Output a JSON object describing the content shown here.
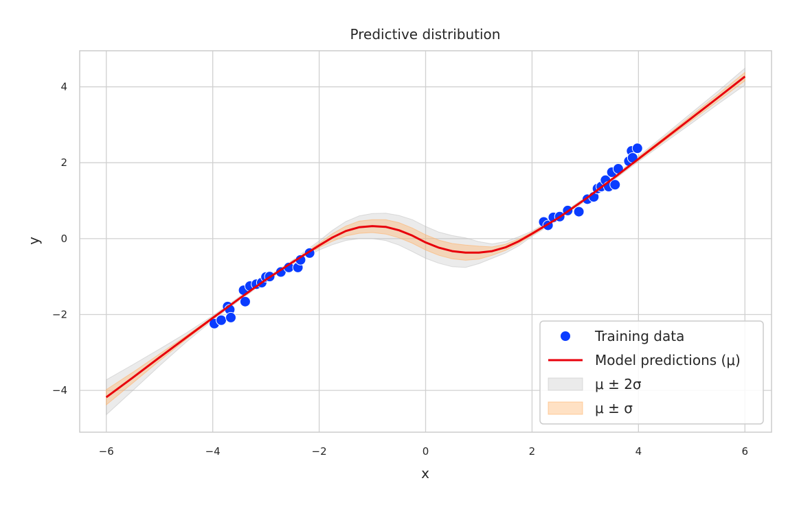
{
  "chart_data": {
    "type": "line",
    "title": "Predictive distribution",
    "xlabel": "x",
    "ylabel": "y",
    "xlim": [
      -6.5,
      6.5
    ],
    "ylim": [
      -5.1,
      4.95
    ],
    "xticks": [
      -6,
      -4,
      -2,
      0,
      2,
      4,
      6
    ],
    "yticks": [
      -4,
      -2,
      0,
      2,
      4
    ],
    "xtick_labels": [
      "−6",
      "−4",
      "−2",
      "0",
      "2",
      "4",
      "6"
    ],
    "ytick_labels": [
      "−4",
      "−2",
      "0",
      "2",
      "4"
    ],
    "grid": true,
    "legend_position": "lower-right",
    "legend": [
      {
        "label": "Training data",
        "kind": "marker"
      },
      {
        "label": "Model predictions (μ)",
        "kind": "line"
      },
      {
        "label": "μ ± 2σ",
        "kind": "patch-gray"
      },
      {
        "label": "μ ± σ",
        "kind": "patch-orange"
      }
    ],
    "colors": {
      "training": "#0a3cff",
      "prediction": "#e8000b",
      "band2": "#bebebe",
      "band1": "#ffb36b",
      "grid": "#d0d0d0",
      "frame": "#cccccc"
    },
    "series": [
      {
        "name": "Training data",
        "kind": "scatter",
        "x": [
          -3.97,
          -3.84,
          -3.72,
          -3.68,
          -3.66,
          -3.42,
          -3.39,
          -3.3,
          -3.18,
          -3.08,
          -3.0,
          -2.93,
          -2.72,
          -2.57,
          -2.4,
          -2.35,
          -2.18,
          2.22,
          2.3,
          2.4,
          2.52,
          2.67,
          2.88,
          3.04,
          3.16,
          3.23,
          3.3,
          3.38,
          3.44,
          3.5,
          3.56,
          3.62,
          3.82,
          3.87,
          3.89,
          3.98
        ],
        "y": [
          -2.24,
          -2.15,
          -1.79,
          -1.87,
          -2.08,
          -1.36,
          -1.66,
          -1.25,
          -1.2,
          -1.16,
          -1.01,
          -1.0,
          -0.88,
          -0.76,
          -0.76,
          -0.56,
          -0.38,
          0.44,
          0.35,
          0.56,
          0.58,
          0.74,
          0.71,
          1.04,
          1.1,
          1.32,
          1.37,
          1.54,
          1.37,
          1.75,
          1.42,
          1.84,
          2.04,
          2.31,
          2.13,
          2.38
        ]
      },
      {
        "name": "Model predictions (μ)",
        "kind": "line",
        "x": [
          -6.0,
          -5.5,
          -5.0,
          -4.5,
          -4.0,
          -3.5,
          -3.0,
          -2.5,
          -2.0,
          -1.75,
          -1.5,
          -1.25,
          -1.0,
          -0.75,
          -0.5,
          -0.25,
          0.0,
          0.25,
          0.5,
          0.75,
          1.0,
          1.25,
          1.5,
          1.75,
          2.0,
          2.5,
          3.0,
          3.5,
          4.0,
          4.5,
          5.0,
          5.5,
          6.0
        ],
        "y": [
          -4.18,
          -3.66,
          -3.13,
          -2.61,
          -2.09,
          -1.58,
          -1.08,
          -0.62,
          -0.18,
          0.03,
          0.2,
          0.3,
          0.33,
          0.31,
          0.22,
          0.08,
          -0.1,
          -0.24,
          -0.33,
          -0.37,
          -0.37,
          -0.33,
          -0.23,
          -0.07,
          0.13,
          0.55,
          1.04,
          1.56,
          2.1,
          2.64,
          3.18,
          3.72,
          4.27
        ]
      },
      {
        "name": "μ ± 2σ",
        "kind": "band",
        "x": [
          -6.0,
          -5.5,
          -5.0,
          -4.5,
          -4.0,
          -3.5,
          -3.0,
          -2.5,
          -2.0,
          -1.75,
          -1.5,
          -1.25,
          -1.0,
          -0.75,
          -0.5,
          -0.25,
          0.0,
          0.25,
          0.5,
          0.75,
          1.0,
          1.25,
          1.5,
          1.75,
          2.0,
          2.5,
          3.0,
          3.5,
          4.0,
          4.5,
          5.0,
          5.5,
          6.0
        ],
        "lower": [
          -4.64,
          -4.0,
          -3.35,
          -2.73,
          -2.15,
          -1.63,
          -1.13,
          -0.67,
          -0.3,
          -0.16,
          -0.05,
          0.0,
          0.0,
          -0.05,
          -0.17,
          -0.34,
          -0.52,
          -0.65,
          -0.74,
          -0.76,
          -0.66,
          -0.52,
          -0.38,
          -0.19,
          0.06,
          0.5,
          0.99,
          1.51,
          2.03,
          2.54,
          3.04,
          3.55,
          4.05
        ]
      },
      {
        "name": "μ ± σ",
        "kind": "band",
        "x": [
          -6.0,
          -5.5,
          -5.0,
          -4.5,
          -4.0,
          -3.5,
          -3.0,
          -2.5,
          -2.0,
          -1.75,
          -1.5,
          -1.25,
          -1.0,
          -0.75,
          -0.5,
          -0.25,
          0.0,
          0.25,
          0.5,
          0.75,
          1.0,
          1.25,
          1.5,
          1.75,
          2.0,
          2.5,
          3.0,
          3.5,
          4.0,
          4.5,
          5.0,
          5.5,
          6.0
        ],
        "lower": [
          -4.38,
          -3.8,
          -3.22,
          -2.66,
          -2.12,
          -1.6,
          -1.1,
          -0.65,
          -0.24,
          -0.07,
          0.07,
          0.14,
          0.16,
          0.12,
          0.02,
          -0.12,
          -0.3,
          -0.44,
          -0.53,
          -0.57,
          -0.54,
          -0.44,
          -0.31,
          -0.13,
          0.09,
          0.52,
          1.01,
          1.53,
          2.06,
          2.59,
          3.11,
          3.63,
          4.16
        ]
      }
    ]
  }
}
